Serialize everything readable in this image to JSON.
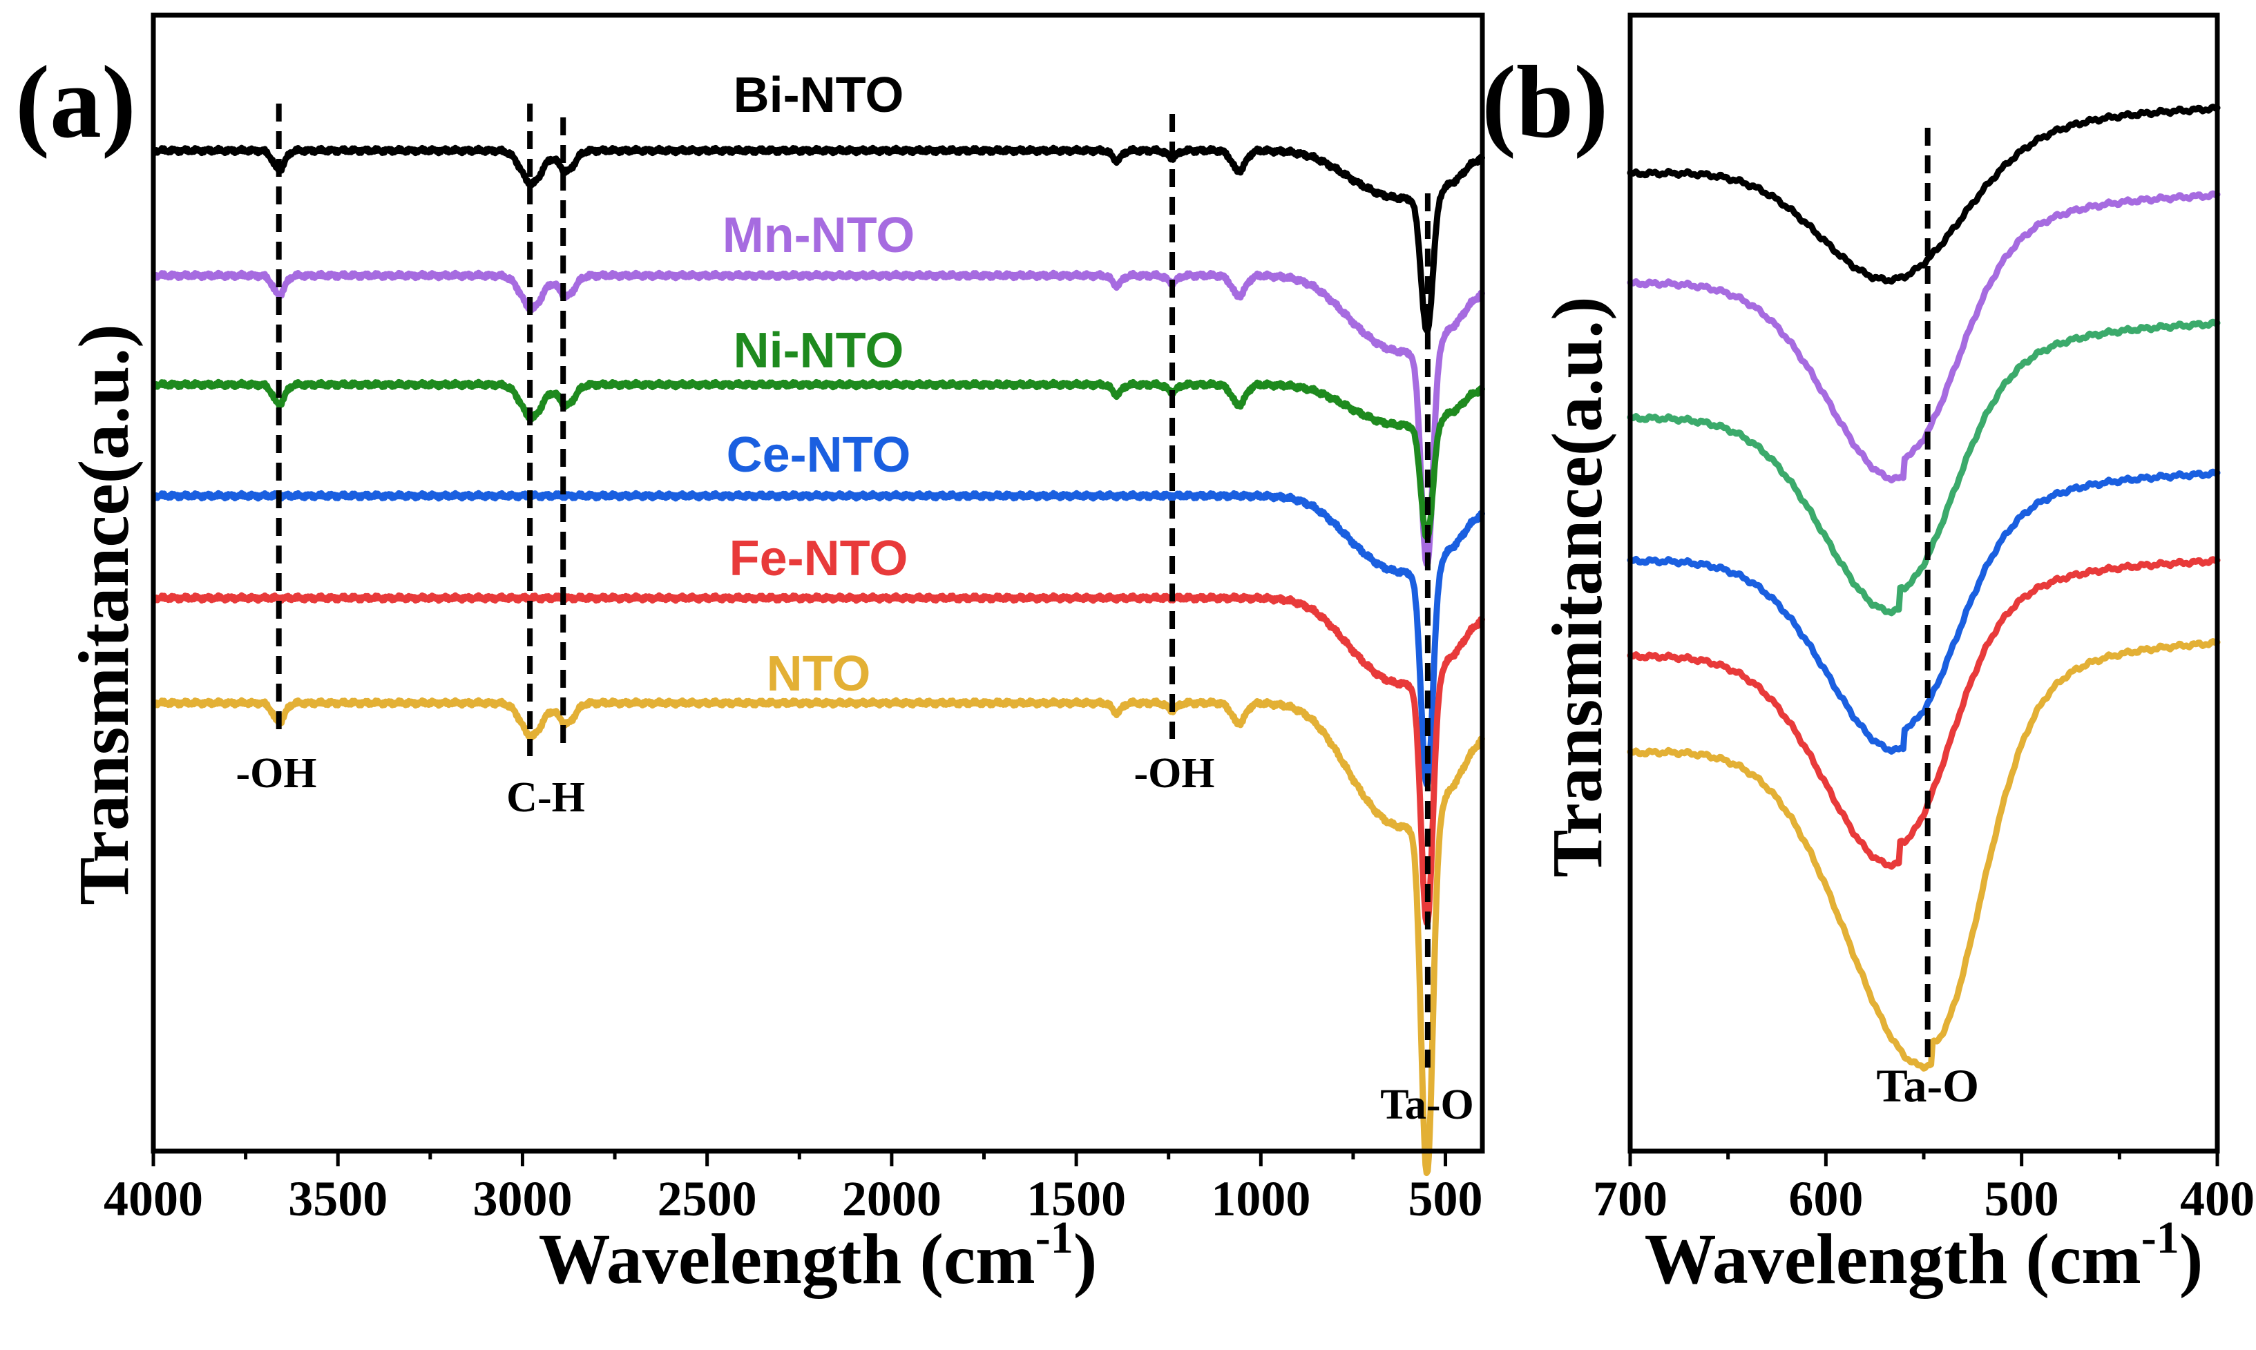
{
  "chart_data": [
    {
      "panel": "(a)",
      "type": "line",
      "xlabel": "Wavelength (cm",
      "xlabel_sup": "-1",
      "xlabel_end": ")",
      "ylabel": "Transmitance(a.u.)",
      "xlim": [
        4000,
        400
      ],
      "xticks": [
        4000,
        3500,
        3000,
        2500,
        2000,
        1500,
        1000,
        500
      ],
      "ytick_labels": false,
      "annotations": [
        {
          "text": "-OH",
          "x": 3660
        },
        {
          "text": "C-H",
          "x": 2930
        },
        {
          "text": "-OH",
          "x": 1240
        },
        {
          "text": "Ta-O",
          "x": 540
        }
      ],
      "dashed_lines_x": [
        3660,
        2980,
        2890,
        1240,
        548
      ],
      "series": [
        {
          "name": "Bi-NTO",
          "color": "#000000",
          "offset": 5
        },
        {
          "name": "Mn-NTO",
          "color": "#A66BE0",
          "offset": 4
        },
        {
          "name": "Ni-NTO",
          "color": "#1E8A1E",
          "offset": 3
        },
        {
          "name": "Ce-NTO",
          "color": "#1A5FE0",
          "offset": 2
        },
        {
          "name": "Fe-NTO",
          "color": "#E83A3A",
          "offset": 1
        },
        {
          "name": "NTO",
          "color": "#E3B035",
          "offset": 0
        }
      ]
    },
    {
      "panel": "(b)",
      "type": "line",
      "xlabel": "Wavelength (cm",
      "xlabel_sup": "-1",
      "xlabel_end": ")",
      "ylabel": "Transmitance(a.u.)",
      "xlim": [
        700,
        400
      ],
      "xticks": [
        700,
        600,
        500,
        400
      ],
      "ytick_labels": false,
      "annotations": [
        {
          "text": "Ta-O",
          "x": 548
        }
      ],
      "dashed_lines_x": [
        548
      ],
      "series": [
        {
          "name": "Bi-NTO",
          "color": "#000000",
          "minimum_x": 565
        },
        {
          "name": "Mn-NTO",
          "color": "#A66BE0",
          "minimum_x": 560
        },
        {
          "name": "Ni-NTO",
          "color": "#3BAA6B",
          "minimum_x": 562
        },
        {
          "name": "Ce-NTO",
          "color": "#1A5FE0",
          "minimum_x": 560
        },
        {
          "name": "Fe-NTO",
          "color": "#E83A3A",
          "minimum_x": 562
        },
        {
          "name": "NTO",
          "color": "#E3B035",
          "minimum_x": 546
        }
      ]
    }
  ]
}
